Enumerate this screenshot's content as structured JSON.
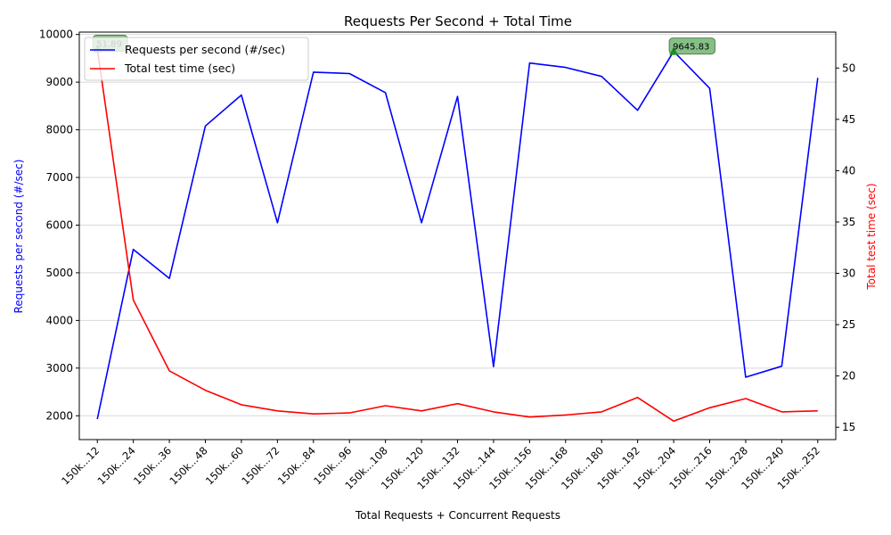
{
  "chart_data": {
    "type": "line",
    "title": "Requests Per Second + Total Time",
    "xlabel": "Total Requests + Concurrent Requests",
    "ylabel_left": "Requests per second (#/sec)",
    "ylabel_right": "Total test time (sec)",
    "categories": [
      "150k...12",
      "150k...24",
      "150k...36",
      "150k...48",
      "150k...60",
      "150k...72",
      "150k...84",
      "150k...96",
      "150k...108",
      "150k...120",
      "150k...132",
      "150k...144",
      "150k...156",
      "150k...168",
      "150k...180",
      "150k...192",
      "150k...204",
      "150k...216",
      "150k...228",
      "150k...240",
      "150k...252"
    ],
    "ylim_left": [
      1500,
      10050
    ],
    "yticks_left": [
      2000,
      3000,
      4000,
      5000,
      6000,
      7000,
      8000,
      9000,
      10000
    ],
    "ylim_right": [
      13.8,
      53.5
    ],
    "yticks_right": [
      15,
      20,
      25,
      30,
      35,
      40,
      45,
      50
    ],
    "grid": "horizontal",
    "legend_position": "top-left",
    "series": [
      {
        "name": "Requests per second (#/sec)",
        "axis": "left",
        "color": "#0000ff",
        "values": [
          1930,
          5490,
          4880,
          8080,
          8730,
          6050,
          9210,
          9180,
          8780,
          6050,
          8700,
          3030,
          9400,
          9310,
          9120,
          8410,
          9645.83,
          8870,
          2810,
          3040,
          9090
        ]
      },
      {
        "name": "Total test time (sec)",
        "axis": "right",
        "color": "#ff0000",
        "values": [
          51.89,
          27.4,
          20.5,
          18.6,
          17.2,
          16.6,
          16.3,
          16.4,
          17.1,
          16.6,
          17.3,
          16.5,
          16.0,
          16.2,
          16.5,
          17.9,
          15.6,
          16.9,
          17.8,
          16.5,
          16.6
        ]
      }
    ],
    "annotations": [
      {
        "label": "51.89",
        "category_index": 0,
        "series_index": 1,
        "color": "#228b22"
      },
      {
        "label": "9645.83",
        "category_index": 16,
        "series_index": 0,
        "color": "#228b22"
      }
    ]
  }
}
